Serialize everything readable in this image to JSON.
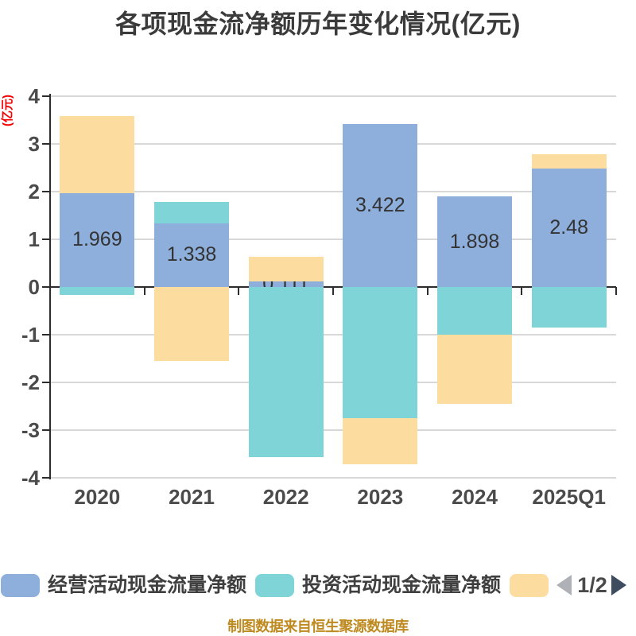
{
  "title": "各项现金流净额历年变化情况(亿元)",
  "y_axis_label": "(亿元)",
  "footer": "制图数据来自恒生聚源数据库",
  "legend": {
    "items": [
      {
        "label": "经营活动现金流量净额",
        "color": "#8EAEDC"
      },
      {
        "label": "投资活动现金流量净额",
        "color": "#7FD4D7"
      },
      {
        "label": "",
        "color": "#FCDC9F"
      }
    ],
    "pagination": {
      "current": "1/2",
      "prev_color": "#AEB2B6",
      "next_color": "#3D4C5F"
    }
  },
  "chart_data": {
    "type": "bar",
    "stacked": true,
    "title": "各项现金流净额历年变化情况(亿元)",
    "ylabel": "(亿元)",
    "categories": [
      "2020",
      "2021",
      "2022",
      "2023",
      "2024",
      "2025Q1"
    ],
    "series": [
      {
        "name": "经营活动现金流量净额",
        "color": "#8EAEDC",
        "values": [
          1.969,
          1.338,
          0.111,
          3.422,
          1.898,
          2.48
        ],
        "data_labels": [
          "1.969",
          "1.338",
          "0.111",
          "3.422",
          "1.898",
          "2.48"
        ]
      },
      {
        "name": "投资活动现金流量净额",
        "color": "#7FD4D7",
        "values": [
          -0.17,
          0.45,
          -3.57,
          -2.75,
          -1.0,
          -0.85
        ]
      },
      {
        "name": "",
        "color": "#FCDC9F",
        "values": [
          1.61,
          -1.55,
          0.52,
          -0.97,
          -1.45,
          0.3
        ]
      }
    ],
    "ylim": [
      -4,
      4
    ],
    "y_ticks": [
      4,
      3,
      2,
      1,
      0,
      -1,
      -2,
      -3,
      -4
    ],
    "grid": true,
    "legend_position": "bottom"
  },
  "colors": {
    "axis": "#2D2D2D",
    "gridline": "#D8D8D8",
    "tick_label": "#4B4B4B",
    "title": "#3B3B3B",
    "bar_label": "#333333",
    "y_axis_name_red": "#F50000",
    "footer_gold": "#BE8A1F"
  }
}
